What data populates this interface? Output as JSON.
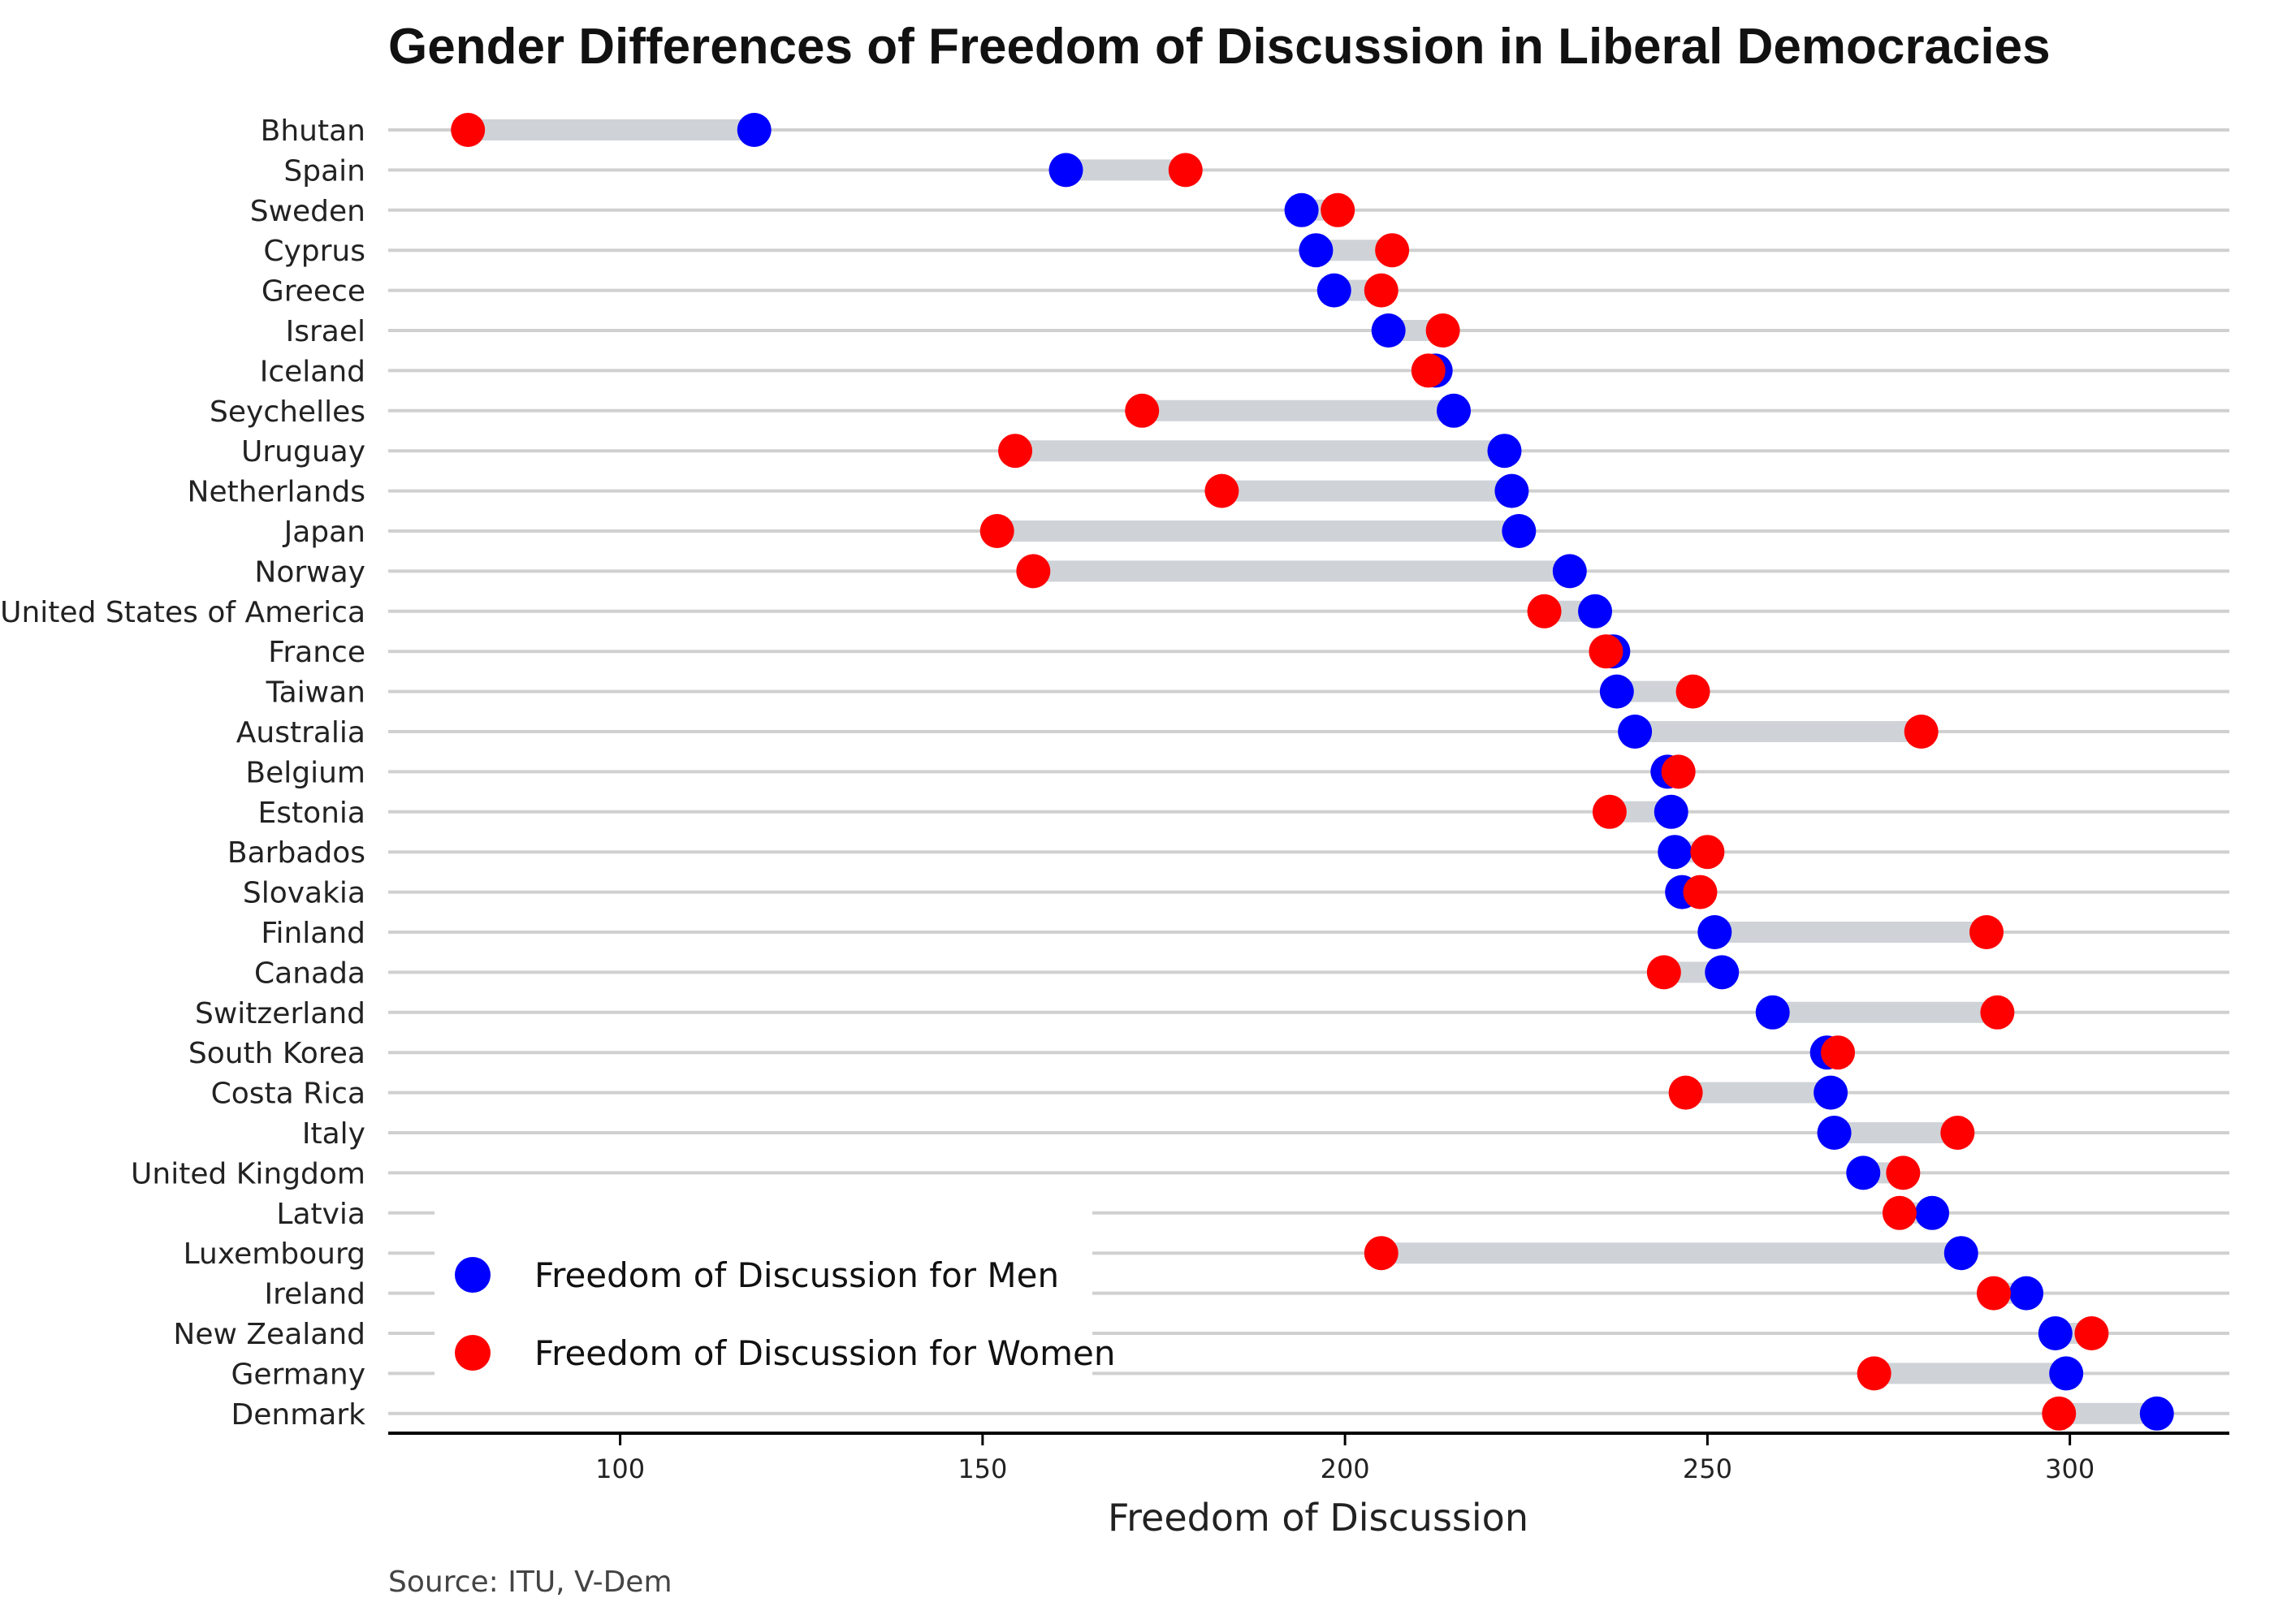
{
  "chart_data": {
    "type": "dumbbell",
    "title": "Gender Differences of Freedom of Discussion in Liberal Democracies",
    "xlabel": "Freedom of Discussion",
    "ylabel": "",
    "source": "Source: ITU, V-Dem",
    "xlim": [
      68,
      322
    ],
    "xticks": [
      100,
      150,
      200,
      250,
      300
    ],
    "grid": "horizontal",
    "legend_position": "bottom-left",
    "colors": {
      "men": "#0000ff",
      "women": "#ff0000",
      "segment": "#cfd3d8",
      "grid": "#d0d0d0",
      "axis": "#000000"
    },
    "series": [
      {
        "key": "men",
        "name": "Freedom of Discussion for Men"
      },
      {
        "key": "women",
        "name": "Freedom of Discussion for Women"
      }
    ],
    "categories": [
      "Bhutan",
      "Spain",
      "Sweden",
      "Cyprus",
      "Greece",
      "Israel",
      "Iceland",
      "Seychelles",
      "Uruguay",
      "Netherlands",
      "Japan",
      "Norway",
      "United States of America",
      "France",
      "Taiwan",
      "Australia",
      "Belgium",
      "Estonia",
      "Barbados",
      "Slovakia",
      "Finland",
      "Canada",
      "Switzerland",
      "South Korea",
      "Costa Rica",
      "Italy",
      "United Kingdom",
      "Latvia",
      "Luxembourg",
      "Ireland",
      "New Zealand",
      "Germany",
      "Denmark"
    ],
    "men": [
      118.5,
      161.5,
      194,
      196,
      198.5,
      206,
      212.5,
      215,
      222,
      223,
      224,
      231,
      234.5,
      237,
      237.5,
      240,
      244.5,
      245,
      245.5,
      246.5,
      251,
      252,
      259,
      266.5,
      267,
      267.5,
      271.5,
      281,
      285,
      294,
      298,
      299.5,
      312
    ],
    "women": [
      79,
      178,
      199,
      206.5,
      205,
      213.5,
      211.5,
      172,
      154.5,
      183,
      152,
      157,
      227.5,
      236,
      248,
      279.5,
      246,
      236.5,
      250,
      249,
      288.5,
      244,
      290,
      268,
      247,
      284.5,
      277,
      276.5,
      205,
      289.5,
      303,
      273,
      298.5
    ]
  }
}
